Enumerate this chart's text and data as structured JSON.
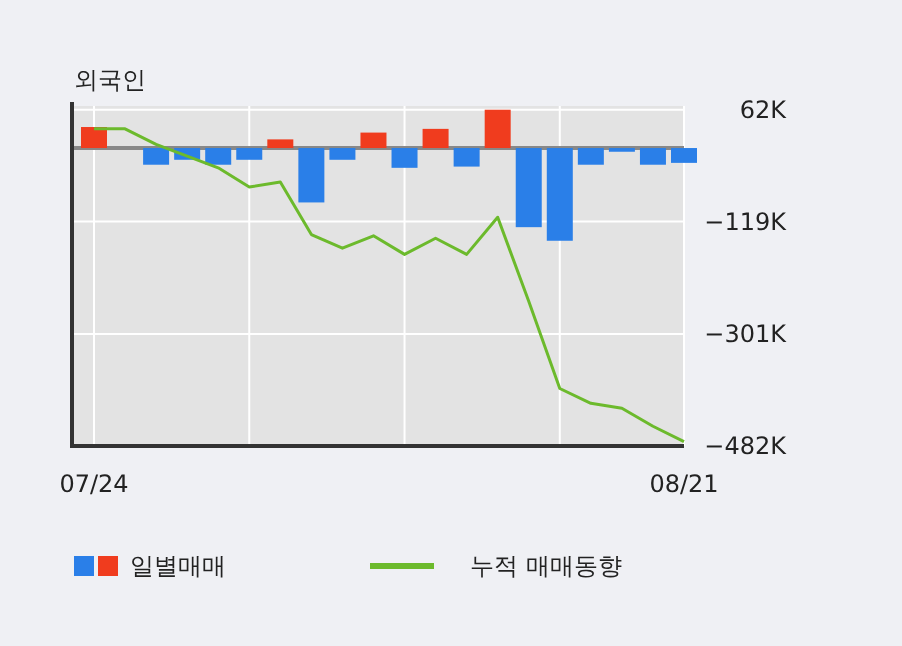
{
  "chart_data": {
    "type": "bar",
    "title": "외국인",
    "categories": [
      "07/24",
      null,
      null,
      null,
      null,
      null,
      null,
      null,
      null,
      null,
      null,
      null,
      null,
      null,
      null,
      null,
      null,
      null,
      null,
      "08/21"
    ],
    "series": [
      {
        "name": "일별매매",
        "colors": [
          "#f03c1e",
          "#2a7fe8",
          "#2a7fe8",
          "#2a7fe8",
          "#2a7fe8",
          "#2a7fe8",
          "#f03c1e",
          "#2a7fe8",
          "#2a7fe8",
          "#f03c1e",
          "#2a7fe8",
          "#f03c1e",
          "#2a7fe8",
          "#f03c1e",
          "#2a7fe8",
          "#2a7fe8",
          "#2a7fe8",
          "#2a7fe8",
          "#2a7fe8",
          "#2a7fe8"
        ],
        "values": [
          34,
          null,
          -27,
          -19,
          -27,
          -19,
          14,
          -88,
          -19,
          25,
          -32,
          31,
          -30,
          62,
          -128,
          -150,
          -27,
          -6,
          -27,
          -24
        ]
      },
      {
        "name": "누적 매매동향",
        "type": "line",
        "color": "#6cba2c",
        "values": [
          31,
          31,
          6,
          -13,
          -32,
          -63,
          -55,
          -140,
          -162,
          -142,
          -172,
          -146,
          -172,
          -112,
          -248,
          -389,
          -413,
          -421,
          -450,
          -475
        ]
      }
    ],
    "ylim": [
      -482,
      68
    ],
    "yticks": [
      {
        "value": 62,
        "label": "62K"
      },
      {
        "value": -119,
        "label": "−119K"
      },
      {
        "value": -301,
        "label": "−301K"
      },
      {
        "value": -482,
        "label": "−482K"
      }
    ],
    "grid": true,
    "legend": "bottom"
  }
}
